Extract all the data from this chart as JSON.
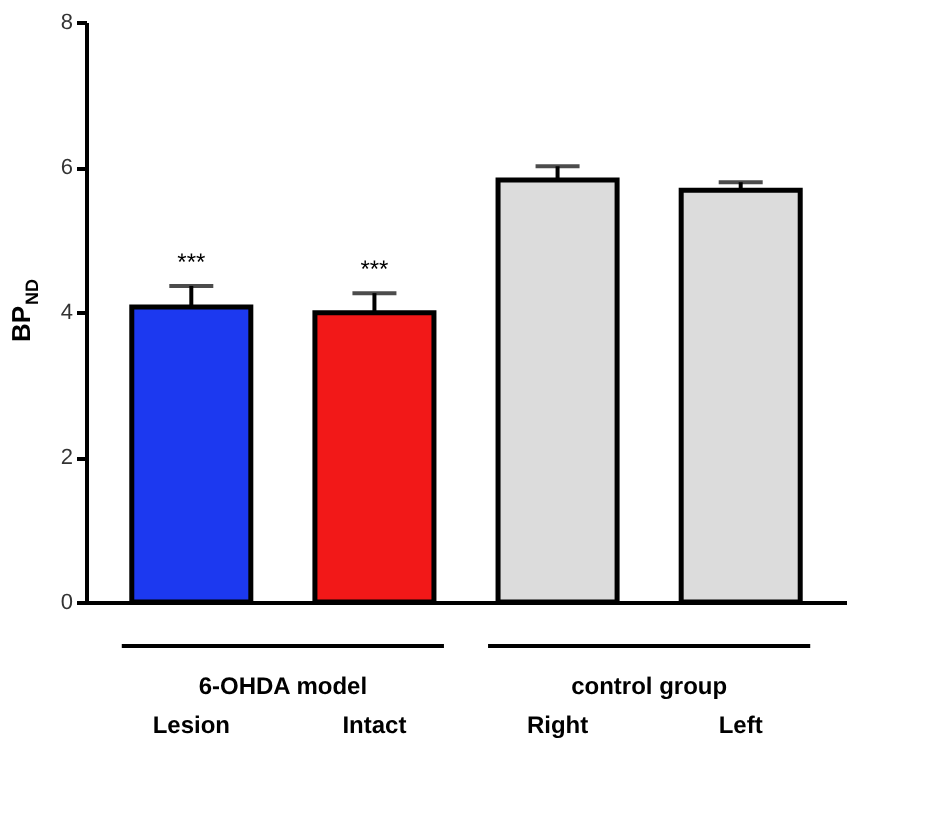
{
  "chart_data": {
    "type": "bar",
    "ylabel": "BP$_{ND}$",
    "categories": [
      "Lesion",
      "Intact",
      "Right",
      "Left"
    ],
    "values": [
      4.07,
      3.99,
      5.82,
      5.68
    ],
    "colors": [
      "#1c39f0",
      "#f21818",
      "#dcdcdc",
      "#dcdcdc"
    ],
    "errors": [
      [
        4.07,
        4.36
      ],
      [
        3.99,
        4.26
      ],
      [
        5.82,
        6.01
      ],
      [
        5.68,
        5.79
      ]
    ],
    "ylim": [
      0,
      8
    ],
    "yticks": [
      0,
      2,
      4,
      6,
      8
    ],
    "grid": false,
    "annotations": [
      {
        "text": "***",
        "x": "Lesion",
        "y": 4.36
      },
      {
        "text": "***",
        "x": "Intact",
        "y": 4.26
      },
      "6-OHDA model",
      "control group"
    ]
  }
}
